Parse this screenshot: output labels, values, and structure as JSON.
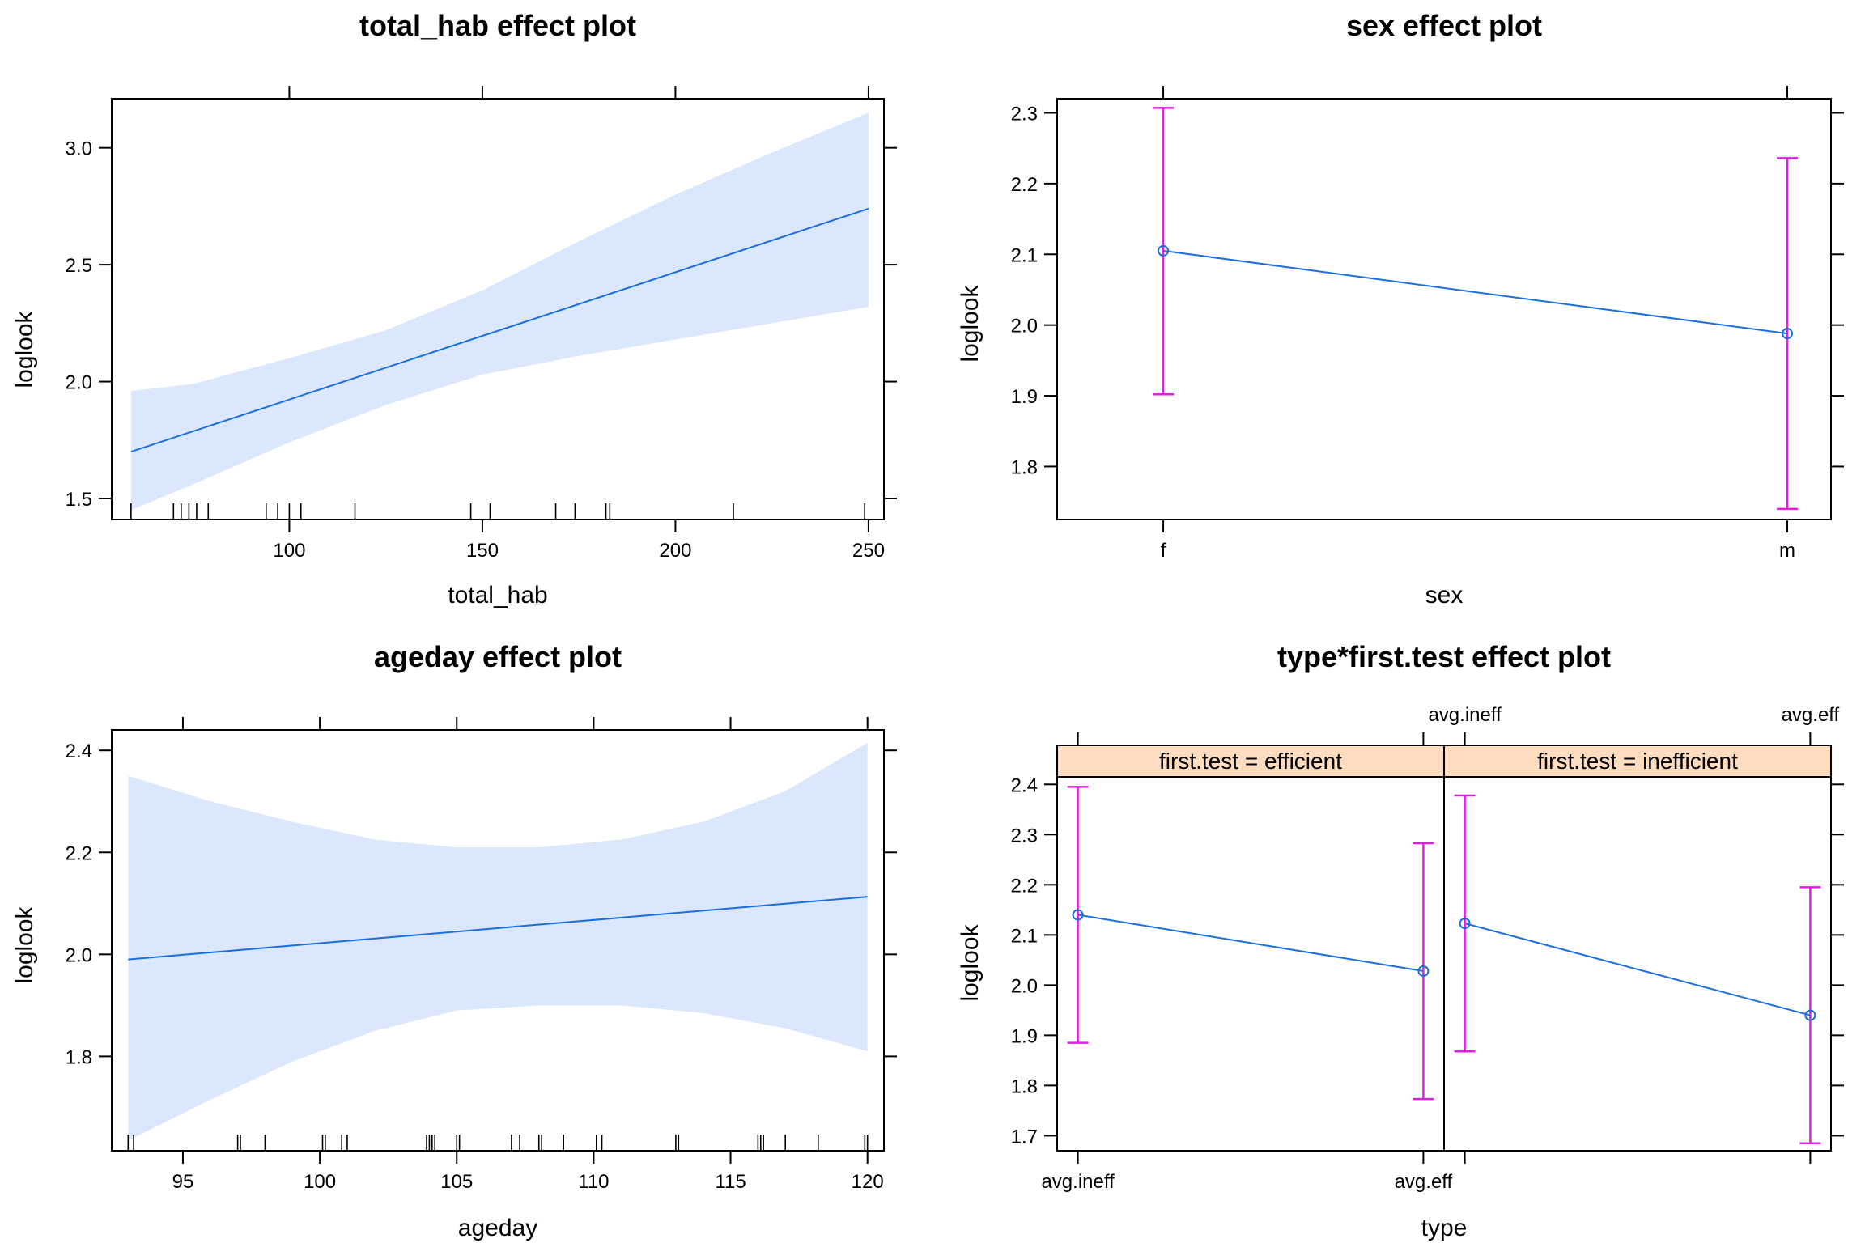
{
  "colors": {
    "line": "#1a6ee0",
    "band": "#dbe7fc",
    "errorbar": "#e31ce3",
    "strip": "#fddcc0",
    "rug": "#000000",
    "frame": "#000000"
  },
  "chart_data": [
    {
      "id": "total_hab",
      "type": "line",
      "title": "total_hab effect plot",
      "xlabel": "total_hab",
      "ylabel": "loglook",
      "xlim": [
        54,
        254
      ],
      "ylim": [
        1.41,
        3.21
      ],
      "xticks": [
        100,
        150,
        200,
        250
      ],
      "xtick_labels": [
        "100",
        "150",
        "200",
        "250"
      ],
      "yticks": [
        1.5,
        2.0,
        2.5,
        3.0
      ],
      "ytick_labels": [
        "1.5",
        "2.0",
        "2.5",
        "3.0"
      ],
      "top_ticks": true,
      "right_ticks": true,
      "grid": false,
      "fit": {
        "x": [
          59,
          250
        ],
        "y": [
          1.7,
          2.74
        ]
      },
      "band": {
        "x": [
          59,
          75,
          100,
          125,
          150,
          175,
          200,
          225,
          250
        ],
        "lower": [
          1.45,
          1.56,
          1.74,
          1.9,
          2.03,
          2.11,
          2.18,
          2.25,
          2.32
        ],
        "upper": [
          1.96,
          1.99,
          2.1,
          2.22,
          2.39,
          2.6,
          2.8,
          2.98,
          3.15
        ]
      },
      "rug": [
        59,
        70,
        72,
        74,
        76,
        79,
        94,
        97,
        100,
        103,
        117,
        147,
        152,
        169,
        174,
        182,
        183,
        215,
        249
      ]
    },
    {
      "id": "sex",
      "type": "errorbar",
      "title": "sex effect plot",
      "xlabel": "sex",
      "ylabel": "loglook",
      "categories": [
        "f",
        "m"
      ],
      "xlim": [
        0.83,
        2.07
      ],
      "ylim": [
        1.725,
        2.32
      ],
      "yticks": [
        1.8,
        1.9,
        2.0,
        2.1,
        2.2,
        2.3
      ],
      "ytick_labels": [
        "1.8",
        "1.9",
        "2.0",
        "2.1",
        "2.2",
        "2.3"
      ],
      "top_ticks": true,
      "right_ticks": true,
      "grid": false,
      "estimate": [
        2.105,
        1.988
      ],
      "lower": [
        1.902,
        1.74
      ],
      "upper": [
        2.307,
        2.236
      ]
    },
    {
      "id": "ageday",
      "type": "line",
      "title": "ageday effect plot",
      "xlabel": "ageday",
      "ylabel": "loglook",
      "xlim": [
        92.4,
        120.6
      ],
      "ylim": [
        1.615,
        2.44
      ],
      "xticks": [
        95,
        100,
        105,
        110,
        115,
        120
      ],
      "xtick_labels": [
        "95",
        "100",
        "105",
        "110",
        "115",
        "120"
      ],
      "yticks": [
        1.8,
        2.0,
        2.2,
        2.4
      ],
      "ytick_labels": [
        "1.8",
        "2.0",
        "2.2",
        "2.4"
      ],
      "top_ticks": true,
      "right_ticks": true,
      "grid": false,
      "fit": {
        "x": [
          93,
          120
        ],
        "y": [
          1.99,
          2.113
        ]
      },
      "band": {
        "x": [
          93,
          96,
          99,
          102,
          105,
          108,
          111,
          114,
          117,
          120
        ],
        "lower": [
          1.635,
          1.715,
          1.79,
          1.85,
          1.89,
          1.9,
          1.9,
          1.885,
          1.855,
          1.81
        ],
        "upper": [
          2.35,
          2.3,
          2.26,
          2.225,
          2.21,
          2.21,
          2.225,
          2.26,
          2.32,
          2.415
        ]
      },
      "rug": [
        93,
        93.2,
        97,
        97.1,
        98,
        100.1,
        100.2,
        100.8,
        101,
        103.9,
        104,
        104.1,
        104.2,
        105,
        105.1,
        107,
        107.3,
        108,
        108.1,
        108.9,
        110.1,
        110.3,
        113,
        113.1,
        116,
        116.1,
        116.2,
        117,
        118.2,
        119.9,
        120
      ]
    },
    {
      "id": "type_first_test",
      "type": "errorbar",
      "title": "type*first.test effect plot",
      "xlabel": "type",
      "ylabel": "loglook",
      "categories": [
        "avg.ineff",
        "avg.eff"
      ],
      "xlim": [
        0.94,
        2.06
      ],
      "ylim": [
        1.67,
        2.415
      ],
      "yticks": [
        1.7,
        1.8,
        1.9,
        2.0,
        2.1,
        2.2,
        2.3,
        2.4
      ],
      "ytick_labels": [
        "1.7",
        "1.8",
        "1.9",
        "2.0",
        "2.1",
        "2.2",
        "2.3",
        "2.4"
      ],
      "bottom_tick_panel": 0,
      "top_tick_panel": 1,
      "grid": false,
      "panels": [
        {
          "strip": "first.test = efficient",
          "estimate": [
            2.14,
            2.028
          ],
          "lower": [
            1.885,
            1.773
          ],
          "upper": [
            2.395,
            2.283
          ]
        },
        {
          "strip": "first.test = inefficient",
          "estimate": [
            2.123,
            1.94
          ],
          "lower": [
            1.868,
            1.685
          ],
          "upper": [
            2.378,
            2.195
          ]
        }
      ]
    }
  ]
}
